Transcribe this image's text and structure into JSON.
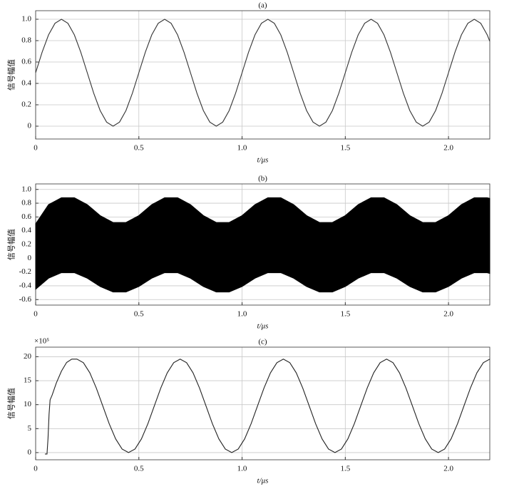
{
  "chart_data": [
    {
      "type": "line",
      "title": "(a)",
      "xlabel": "t/μs",
      "ylabel": "信号幅值",
      "color": "#333333",
      "grid": true,
      "xlim": [
        0,
        2.2
      ],
      "ylim": [
        -0.12,
        1.08
      ],
      "xticks": [
        0,
        0.5,
        {
          "value": 1,
          "label": "1.0"
        },
        1.5,
        {
          "value": 2,
          "label": "2.0"
        }
      ],
      "yticks": [
        0,
        0.2,
        0.4,
        0.6,
        0.8,
        {
          "value": 1,
          "label": "1.0"
        }
      ],
      "x": [
        0,
        0.03125,
        0.0625,
        0.09375,
        0.125,
        0.15625,
        0.1875,
        0.21875,
        0.25,
        0.28125,
        0.3125,
        0.34375,
        0.375,
        0.40625,
        0.4375,
        0.46875,
        0.5,
        0.53125,
        0.5625,
        0.59375,
        0.625,
        0.65625,
        0.6875,
        0.71875,
        0.75,
        0.78125,
        0.8125,
        0.84375,
        0.875,
        0.90625,
        0.9375,
        0.96875,
        1,
        1.03125,
        1.0625,
        1.09375,
        1.125,
        1.15625,
        1.1875,
        1.21875,
        1.25,
        1.28125,
        1.3125,
        1.34375,
        1.375,
        1.40625,
        1.4375,
        1.46875,
        1.5,
        1.53125,
        1.5625,
        1.59375,
        1.625,
        1.65625,
        1.6875,
        1.71875,
        1.75,
        1.78125,
        1.8125,
        1.84375,
        1.875,
        1.90625,
        1.9375,
        1.96875,
        2,
        2.03125,
        2.0625,
        2.09375,
        2.125,
        2.15625,
        2.1875,
        2.2
      ],
      "values": [
        0.5,
        0.691,
        0.854,
        0.962,
        1,
        0.962,
        0.854,
        0.691,
        0.5,
        0.309,
        0.146,
        0.038,
        0,
        0.038,
        0.146,
        0.309,
        0.5,
        0.691,
        0.854,
        0.962,
        1,
        0.962,
        0.854,
        0.691,
        0.5,
        0.309,
        0.146,
        0.038,
        0,
        0.038,
        0.146,
        0.309,
        0.5,
        0.691,
        0.854,
        0.962,
        1,
        0.962,
        0.854,
        0.691,
        0.5,
        0.309,
        0.146,
        0.038,
        0,
        0.038,
        0.146,
        0.309,
        0.5,
        0.691,
        0.854,
        0.962,
        1,
        0.962,
        0.854,
        0.691,
        0.5,
        0.309,
        0.146,
        0.038,
        0,
        0.038,
        0.146,
        0.309,
        0.5,
        0.691,
        0.854,
        0.962,
        1,
        0.962,
        0.854,
        0.794
      ]
    },
    {
      "type": "area",
      "title": "(b)",
      "xlabel": "t/μs",
      "ylabel": "信号幅值",
      "color": "#000000",
      "grid": true,
      "xlim": [
        0,
        2.2
      ],
      "ylim": [
        -0.68,
        1.08
      ],
      "xticks": [
        0,
        0.5,
        {
          "value": 1,
          "label": "1.0"
        },
        1.5,
        {
          "value": 2,
          "label": "2.0"
        }
      ],
      "yticks": [
        -0.6,
        -0.4,
        -0.2,
        0,
        0.2,
        0.4,
        0.6,
        0.8,
        {
          "value": 1,
          "label": "1.0"
        }
      ],
      "x": [
        0,
        0.0625,
        0.125,
        0.1875,
        0.25,
        0.3125,
        0.375,
        0.4375,
        0.5,
        0.5625,
        0.625,
        0.6875,
        0.75,
        0.8125,
        0.875,
        0.9375,
        1,
        1.0625,
        1.125,
        1.1875,
        1.25,
        1.3125,
        1.375,
        1.4375,
        1.5,
        1.5625,
        1.625,
        1.6875,
        1.75,
        1.8125,
        1.875,
        1.9375,
        2,
        2.0625,
        2.125,
        2.1875,
        2.2
      ],
      "upper": [
        0.5,
        0.78,
        0.88,
        0.88,
        0.78,
        0.62,
        0.52,
        0.52,
        0.62,
        0.78,
        0.88,
        0.88,
        0.78,
        0.62,
        0.52,
        0.52,
        0.62,
        0.78,
        0.88,
        0.88,
        0.78,
        0.62,
        0.52,
        0.52,
        0.62,
        0.78,
        0.88,
        0.88,
        0.78,
        0.62,
        0.52,
        0.52,
        0.62,
        0.78,
        0.88,
        0.88,
        0.87
      ],
      "lower": [
        -0.45,
        -0.29,
        -0.21,
        -0.21,
        -0.29,
        -0.41,
        -0.49,
        -0.49,
        -0.41,
        -0.29,
        -0.21,
        -0.21,
        -0.29,
        -0.41,
        -0.49,
        -0.49,
        -0.41,
        -0.29,
        -0.21,
        -0.21,
        -0.29,
        -0.41,
        -0.49,
        -0.49,
        -0.41,
        -0.29,
        -0.21,
        -0.21,
        -0.29,
        -0.41,
        -0.49,
        -0.49,
        -0.41,
        -0.29,
        -0.21,
        -0.21,
        -0.22
      ]
    },
    {
      "type": "line",
      "title": "(c)",
      "xlabel": "t/μs",
      "ylabel": "信号幅值",
      "annotation": "×10⁵",
      "color": "#222222",
      "grid": true,
      "xlim": [
        0,
        2.2
      ],
      "ylim": [
        -1.5,
        22
      ],
      "xticks": [
        0,
        0.5,
        {
          "value": 1,
          "label": "1.0"
        },
        1.5,
        {
          "value": 2,
          "label": "2.0"
        }
      ],
      "yticks": [
        0,
        5,
        10,
        15,
        20
      ],
      "x": [
        0.045,
        0.055,
        0.06,
        0.065,
        0.07,
        0.08,
        0.1,
        0.125,
        0.15,
        0.175,
        0.2,
        0.23125,
        0.2625,
        0.29375,
        0.325,
        0.35625,
        0.3875,
        0.41875,
        0.45,
        0.48125,
        0.5125,
        0.54375,
        0.575,
        0.60625,
        0.6375,
        0.66875,
        0.7,
        0.73125,
        0.7625,
        0.79375,
        0.825,
        0.85625,
        0.8875,
        0.91875,
        0.95,
        0.98125,
        1.0125,
        1.04375,
        1.075,
        1.10625,
        1.1375,
        1.16875,
        1.2,
        1.23125,
        1.2625,
        1.29375,
        1.325,
        1.35625,
        1.3875,
        1.41875,
        1.45,
        1.48125,
        1.5125,
        1.54375,
        1.575,
        1.60625,
        1.6375,
        1.66875,
        1.7,
        1.73125,
        1.7625,
        1.79375,
        1.825,
        1.85625,
        1.8875,
        1.91875,
        1.95,
        1.98125,
        2.0125,
        2.04375,
        2.075,
        2.10625,
        2.1375,
        2.16875,
        2.2
      ],
      "values": [
        -0.3,
        -0.3,
        3,
        8,
        11,
        12,
        14.5,
        17,
        18.8,
        19.5,
        19.5,
        18.76,
        16.64,
        13.48,
        9.75,
        6.02,
        2.86,
        0.74,
        0,
        0.74,
        2.86,
        6.02,
        9.75,
        13.48,
        16.64,
        18.76,
        19.5,
        18.76,
        16.64,
        13.48,
        9.75,
        6.02,
        2.86,
        0.74,
        0,
        0.74,
        2.86,
        6.02,
        9.75,
        13.48,
        16.64,
        18.76,
        19.5,
        18.76,
        16.64,
        13.48,
        9.75,
        6.02,
        2.86,
        0.74,
        0,
        0.74,
        2.86,
        6.02,
        9.75,
        13.48,
        16.64,
        18.76,
        19.5,
        18.76,
        16.64,
        13.48,
        9.75,
        6.02,
        2.86,
        0.74,
        0,
        0.74,
        2.86,
        6.02,
        9.75,
        13.48,
        16.64,
        18.76,
        19.5
      ]
    }
  ]
}
